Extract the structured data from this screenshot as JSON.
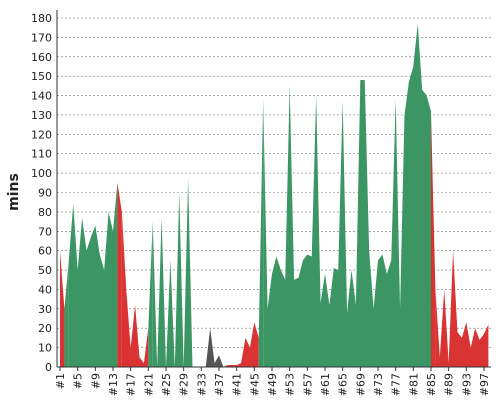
{
  "chart_data": {
    "type": "area",
    "y_label": "mins",
    "categories": [
      "#1",
      null,
      null,
      null,
      "#5",
      null,
      null,
      null,
      "#9",
      null,
      null,
      null,
      "#13",
      null,
      null,
      null,
      "#17",
      null,
      null,
      null,
      "#21",
      null,
      null,
      null,
      "#25",
      null,
      null,
      null,
      "#29",
      null,
      null,
      null,
      "#33",
      null,
      null,
      null,
      "#37",
      null,
      null,
      null,
      "#41",
      null,
      null,
      null,
      "#45",
      null,
      null,
      null,
      "#49",
      null,
      null,
      null,
      "#53",
      null,
      null,
      null,
      "#57",
      null,
      null,
      null,
      "#61",
      null,
      null,
      null,
      "#65",
      null,
      null,
      null,
      "#69",
      null,
      null,
      null,
      "#73",
      null,
      null,
      null,
      "#77",
      null,
      null,
      null,
      "#81",
      null,
      null,
      null,
      "#85",
      null,
      null,
      null,
      "#89",
      null,
      null,
      null,
      "#93",
      null,
      null,
      null,
      "#97",
      null
    ],
    "values": [
      60,
      30,
      55,
      84,
      50,
      77,
      60,
      67,
      73,
      58,
      50,
      80,
      70,
      95,
      80,
      40,
      10,
      32,
      5,
      2,
      20,
      75,
      0,
      77,
      0,
      55,
      0,
      90,
      0,
      97,
      0,
      0,
      0,
      0,
      20,
      2,
      6,
      0,
      1,
      1,
      1,
      2,
      15,
      10,
      23,
      15,
      138,
      30,
      48,
      57,
      50,
      45,
      145,
      45,
      46,
      55,
      58,
      57,
      140,
      33,
      48,
      32,
      51,
      50,
      137,
      28,
      50,
      32,
      148,
      148,
      60,
      30,
      55,
      58,
      48,
      55,
      138,
      30,
      130,
      147,
      155,
      177,
      143,
      140,
      132,
      40,
      5,
      40,
      2,
      60,
      18,
      15,
      23,
      10,
      20,
      14,
      17,
      22
    ],
    "point_colors": [
      "#3b9664",
      "#d93333",
      "#3b9664",
      "#3b9664",
      "#3b9664",
      "#3b9664",
      "#3b9664",
      "#3b9664",
      "#3b9664",
      "#3b9664",
      "#3b9664",
      "#3b9664",
      "#3b9664",
      "#3b9664",
      "#d93333",
      "#d93333",
      "#d93333",
      "#d93333",
      "#d93333",
      "#d93333",
      "#d93333",
      "#3b9664",
      "#3b9664",
      "#3b9664",
      "#3b9664",
      "#3b9664",
      "#3b9664",
      "#3b9664",
      "#3b9664",
      "#3b9664",
      "#3b9664",
      "#555555",
      "#555555",
      "#555555",
      "#555555",
      "#555555",
      "#555555",
      "#555555",
      "#d93333",
      "#d93333",
      "#d93333",
      "#d93333",
      "#d93333",
      "#d93333",
      "#d93333",
      "#d93333",
      "#3b9664",
      "#3b9664",
      "#3b9664",
      "#3b9664",
      "#3b9664",
      "#3b9664",
      "#3b9664",
      "#3b9664",
      "#3b9664",
      "#3b9664",
      "#3b9664",
      "#3b9664",
      "#3b9664",
      "#3b9664",
      "#3b9664",
      "#3b9664",
      "#3b9664",
      "#3b9664",
      "#3b9664",
      "#3b9664",
      "#3b9664",
      "#3b9664",
      "#3b9664",
      "#3b9664",
      "#3b9664",
      "#3b9664",
      "#3b9664",
      "#3b9664",
      "#3b9664",
      "#3b9664",
      "#3b9664",
      "#3b9664",
      "#3b9664",
      "#3b9664",
      "#3b9664",
      "#3b9664",
      "#3b9664",
      "#3b9664",
      "#3b9664",
      "#d93333",
      "#d93333",
      "#d93333",
      "#d93333",
      "#d93333",
      "#d93333",
      "#d93333",
      "#d93333",
      "#d93333",
      "#d93333",
      "#d93333",
      "#d93333",
      "#d93333"
    ],
    "ylim": [
      0,
      180
    ],
    "yticks": [
      0,
      10,
      20,
      30,
      40,
      50,
      60,
      70,
      80,
      90,
      100,
      110,
      120,
      130,
      140,
      150,
      160,
      170,
      180
    ],
    "grid": true
  }
}
